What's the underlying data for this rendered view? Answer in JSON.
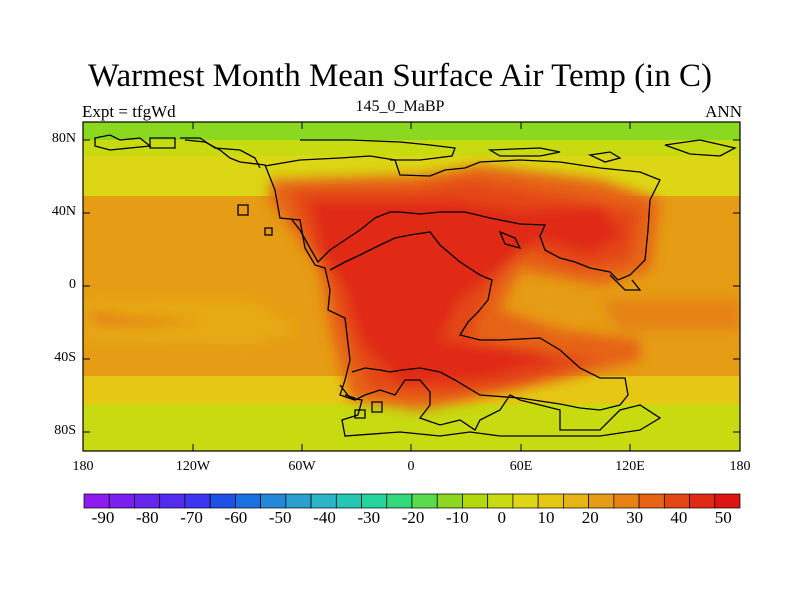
{
  "map": {
    "title": "Warmest Month Mean Surface Air Temp (in C)",
    "experiment_label": "Expt = tfgWd",
    "period_label": "145_0_MaBP",
    "season_label": "ANN",
    "lat_ticks": [
      "80N",
      "40N",
      "0",
      "40S",
      "80S"
    ],
    "lon_ticks": [
      "180",
      "120W",
      "60W",
      "0",
      "60E",
      "120E",
      "180"
    ]
  },
  "colorbar": {
    "labels": [
      "-90",
      "-80",
      "-70",
      "-60",
      "-50",
      "-40",
      "-30",
      "-20",
      "-10",
      "0",
      "10",
      "20",
      "30",
      "40",
      "50"
    ],
    "colors": [
      "#8c1cf0",
      "#7a1ff0",
      "#6626f0",
      "#522df0",
      "#3c36f0",
      "#1d50e6",
      "#1970e0",
      "#2288d8",
      "#2a9fd0",
      "#2bb6c8",
      "#23c7b4",
      "#25d49c",
      "#32d87a",
      "#58dc4c",
      "#8ad820",
      "#b2d80e",
      "#c8da10",
      "#dcd614",
      "#e6c814",
      "#e6b414",
      "#e69c14",
      "#e68214",
      "#e66414",
      "#e44614",
      "#e02a14",
      "#dc1414"
    ]
  }
}
